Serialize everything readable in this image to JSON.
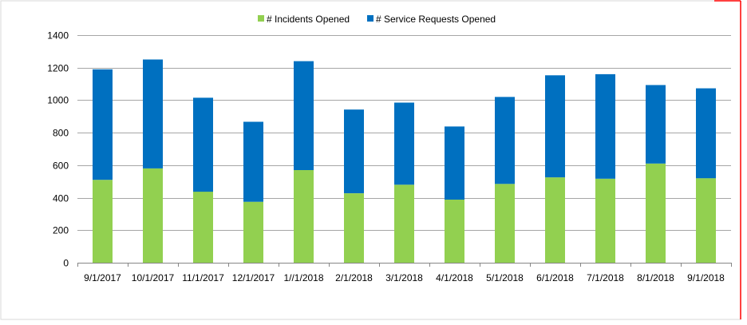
{
  "colors": {
    "series_incidents": "#92d050",
    "series_service_requests": "#0070c0",
    "gridline": "#a6a6a6",
    "axis": "#868686",
    "plot_border": "#d9d9d9",
    "outer_border_accent": "#ff0000"
  },
  "chart_data": {
    "type": "bar",
    "stacked": true,
    "title": "",
    "xlabel": "",
    "ylabel": "",
    "ylim": [
      0,
      1400
    ],
    "yticks": [
      0,
      200,
      400,
      600,
      800,
      1000,
      1200,
      1400
    ],
    "grid": true,
    "legend_position": "top-center",
    "categories": [
      "9/1/2017",
      "10/1/2017",
      "11/1/2017",
      "12/1/2017",
      "1//1/2018",
      "2/1/2018",
      "3/1/2018",
      "4/1/2018",
      "5/1/2018",
      "6/1/2018",
      "7/1/2018",
      "8/1/2018",
      "9/1/2018"
    ],
    "series": [
      {
        "name": "# Incidents Opened",
        "values": [
          510,
          580,
          437,
          375,
          570,
          427,
          480,
          388,
          485,
          525,
          517,
          610,
          520
        ]
      },
      {
        "name": "# Service Requests Opened",
        "values": [
          680,
          670,
          578,
          492,
          670,
          515,
          505,
          450,
          535,
          628,
          643,
          483,
          553
        ]
      }
    ]
  }
}
